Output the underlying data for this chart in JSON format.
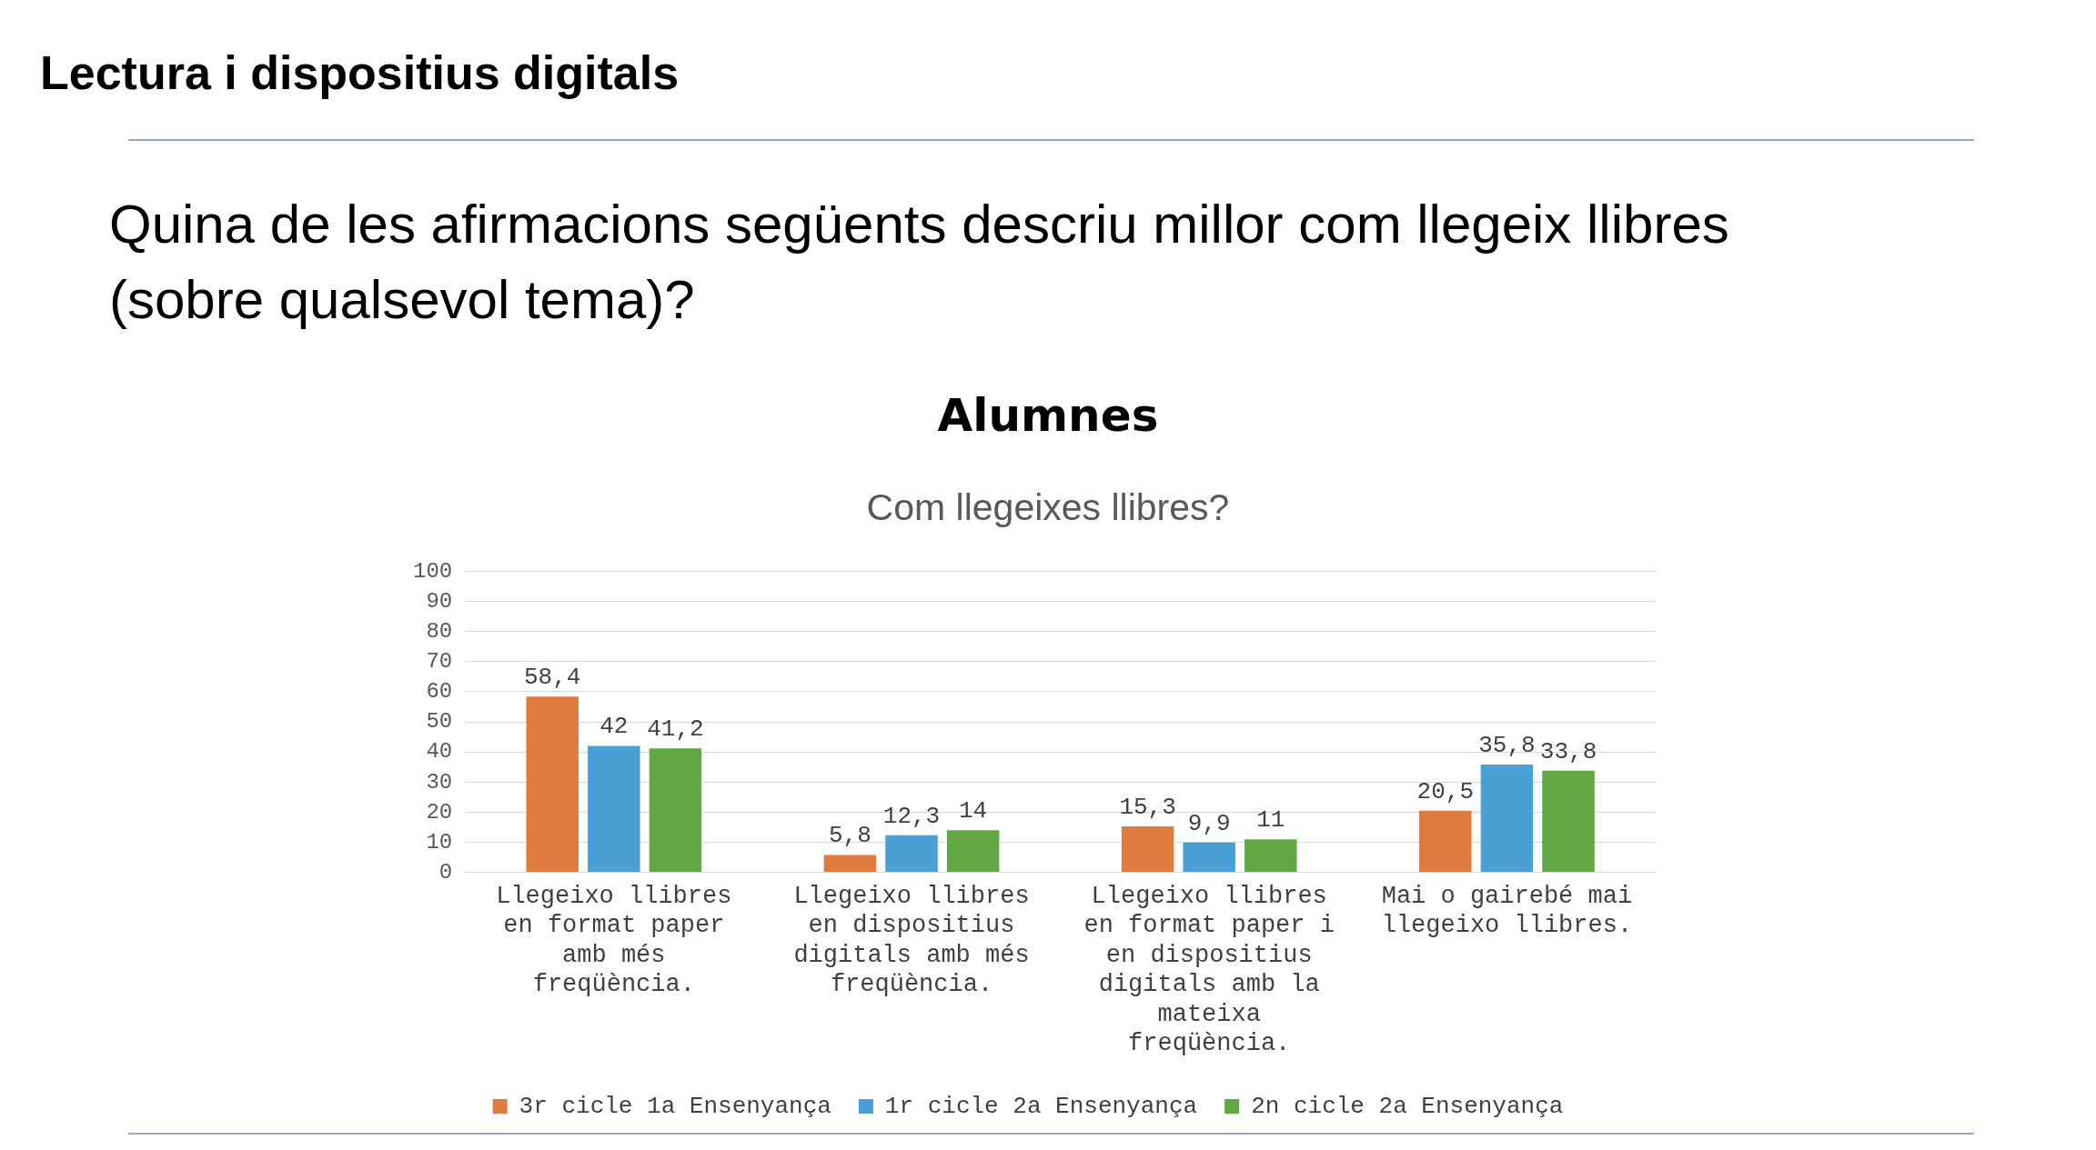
{
  "chart_data": {
    "type": "bar",
    "title": "Lectura i dispositius digitals",
    "subtitle": "Quina de les afirmacions següents descriu millor com llegeix llibres (sobre qualsevol tema)?",
    "annotations": [
      "Alumnes",
      "Com llegeixes llibres?"
    ],
    "categories": [
      "Llegeixo llibres en format paper amb més freqüència.",
      "Llegeixo llibres en dispositius digitals amb més freqüència.",
      "Llegeixo llibres en format paper i en dispositius digitals amb la mateixa freqüència.",
      "Mai o gairebé mai llegeixo llibres."
    ],
    "series": [
      {
        "name": "3r cicle 1a Ensenyança",
        "color": "#e07b3f",
        "values": [
          58.4,
          5.8,
          15.3,
          20.5
        ],
        "value_labels": [
          "58,4",
          "5,8",
          "15,3",
          "20,5"
        ]
      },
      {
        "name": "1r cicle 2a Ensenyança",
        "color": "#4a9fd4",
        "values": [
          42,
          12.3,
          9.9,
          35.8
        ],
        "value_labels": [
          "42",
          "12,3",
          "9,9",
          "35,8"
        ]
      },
      {
        "name": "2n cicle 2a Ensenyança",
        "color": "#62a744",
        "values": [
          41.2,
          14,
          11,
          33.8
        ],
        "value_labels": [
          "41,2",
          "14",
          "11",
          "33,8"
        ]
      }
    ],
    "ylim": [
      0,
      100
    ],
    "yticks": [
      0,
      10,
      20,
      30,
      40,
      50,
      60,
      70,
      80,
      90,
      100
    ],
    "grid": "y",
    "legend": "bottom"
  }
}
